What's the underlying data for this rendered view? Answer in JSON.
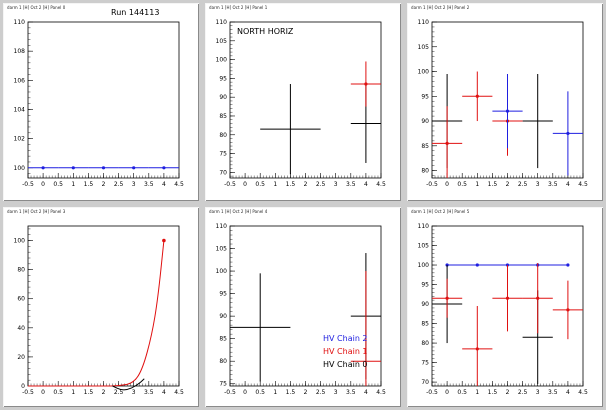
{
  "pads": [
    {
      "title": "darm 1 [H] Oct 2 [H] Panel 0"
    },
    {
      "title": "darm 1 [H] Oct 2 [H] Panel 1"
    },
    {
      "title": "darm 1 [H] Oct 2 [H] Panel 2"
    },
    {
      "title": "darm 1 [H] Oct 2 [H] Panel 3"
    },
    {
      "title": "darm 1 [H] Oct 2 [H] Panel 4"
    },
    {
      "title": "darm 1 [H] Oct 2 [H] Panel 5"
    }
  ],
  "colors": {
    "chain2": "#1f1fe0",
    "chain1": "#e01010",
    "chain0": "#000000"
  },
  "legend": {
    "chain2": "HV Chain 2",
    "chain1": "HV Chain 1",
    "chain0": "HV Chain 0"
  },
  "chart_data": [
    {
      "type": "scatter",
      "annotation": "Run 144113",
      "xlim": [
        -0.5,
        4.5
      ],
      "ylim": [
        99.3,
        110
      ],
      "xticks": [
        -0.5,
        0,
        0.5,
        1,
        1.5,
        2,
        2.5,
        3,
        3.5,
        4,
        4.5
      ],
      "yticks": [
        100,
        102,
        104,
        106,
        108,
        110
      ],
      "series": [
        {
          "color": "#1f1fe0",
          "points": [
            {
              "x": 0,
              "y": 100,
              "xerr": 0.5,
              "yerr": 0
            },
            {
              "x": 1,
              "y": 100,
              "xerr": 0.5,
              "yerr": 0
            },
            {
              "x": 2,
              "y": 100,
              "xerr": 0.5,
              "yerr": 0
            },
            {
              "x": 3,
              "y": 100,
              "xerr": 0.5,
              "yerr": 0
            },
            {
              "x": 4,
              "y": 100,
              "xerr": 0.5,
              "yerr": 0
            }
          ]
        }
      ]
    },
    {
      "type": "scatter",
      "annotation": "NORTH HORIZ",
      "xlim": [
        -0.5,
        4.5
      ],
      "ylim": [
        68.5,
        110
      ],
      "xticks": [
        -0.5,
        0,
        0.5,
        1,
        1.5,
        2,
        2.5,
        3,
        3.5,
        4,
        4.5
      ],
      "yticks": [
        70,
        75,
        80,
        85,
        90,
        95,
        100,
        105,
        110
      ],
      "series": [
        {
          "color": "#000000",
          "points": [
            {
              "x": 1.5,
              "y": 81.5,
              "xerr": 1.0,
              "yerr": 12
            },
            {
              "x": 4,
              "y": 83,
              "xerr": 0.5,
              "yerr": 10.5
            }
          ]
        },
        {
          "color": "#e01010",
          "points": [
            {
              "x": 4,
              "y": 93.5,
              "xerr": 0.5,
              "yerr": 6,
              "marker": true
            }
          ]
        }
      ]
    },
    {
      "type": "scatter",
      "xlim": [
        -0.5,
        4.5
      ],
      "ylim": [
        78.5,
        110
      ],
      "xticks": [
        -0.5,
        0,
        0.5,
        1,
        1.5,
        2,
        2.5,
        3,
        3.5,
        4,
        4.5
      ],
      "yticks": [
        80,
        85,
        90,
        95,
        100,
        105,
        110
      ],
      "series": [
        {
          "color": "#000000",
          "points": [
            {
              "x": 0,
              "y": 90,
              "xerr": 0.5,
              "yerr": 9.5
            },
            {
              "x": 3,
              "y": 90,
              "xerr": 0.5,
              "yerr": 9.5
            }
          ]
        },
        {
          "color": "#e01010",
          "points": [
            {
              "x": 0,
              "y": 85.5,
              "xerr": 0.5,
              "yerr": 7.5,
              "marker": true
            },
            {
              "x": 1,
              "y": 95,
              "xerr": 0.5,
              "yerr": 5,
              "marker": true
            },
            {
              "x": 2,
              "y": 90,
              "xerr": 0.5,
              "yerr": 7,
              "marker": true
            }
          ]
        },
        {
          "color": "#1f1fe0",
          "points": [
            {
              "x": 2,
              "y": 92,
              "xerr": 0.5,
              "yerr": 7.5,
              "marker": true
            },
            {
              "x": 4,
              "y": 87.5,
              "xerr": 0.5,
              "yerr": 8.5,
              "marker": true
            }
          ]
        }
      ]
    },
    {
      "type": "line",
      "xlim": [
        -0.5,
        4.5
      ],
      "ylim": [
        0,
        110
      ],
      "xticks": [
        -0.5,
        0,
        0.5,
        1,
        1.5,
        2,
        2.5,
        3,
        3.5,
        4,
        4.5
      ],
      "yticks": [
        0,
        20,
        40,
        60,
        80,
        100
      ],
      "series": [
        {
          "color": "#e01010",
          "smooth": true,
          "points": [
            {
              "x": -0.5,
              "y": 0
            },
            {
              "x": 0,
              "y": 0
            },
            {
              "x": 1,
              "y": 0
            },
            {
              "x": 2,
              "y": 0
            },
            {
              "x": 2.5,
              "y": 0
            },
            {
              "x": 3,
              "y": 2
            },
            {
              "x": 3.3,
              "y": 12
            },
            {
              "x": 3.6,
              "y": 35
            },
            {
              "x": 3.8,
              "y": 60
            },
            {
              "x": 4,
              "y": 100
            }
          ],
          "marker_points": [
            {
              "x": 4,
              "y": 100
            }
          ]
        },
        {
          "color": "#000000",
          "smooth": true,
          "points": [
            {
              "x": 2.3,
              "y": 0
            },
            {
              "x": 2.6,
              "y": -3
            },
            {
              "x": 2.9,
              "y": -2
            },
            {
              "x": 3.2,
              "y": 2
            },
            {
              "x": 3.35,
              "y": 5
            }
          ]
        }
      ]
    },
    {
      "type": "scatter",
      "xlim": [
        -0.5,
        4.5
      ],
      "ylim": [
        74.5,
        110
      ],
      "xticks": [
        -0.5,
        0,
        0.5,
        1,
        1.5,
        2,
        2.5,
        3,
        3.5,
        4,
        4.5
      ],
      "yticks": [
        75,
        80,
        85,
        90,
        95,
        100,
        105,
        110
      ],
      "series": [
        {
          "color": "#000000",
          "points": [
            {
              "x": 0.5,
              "y": 87.5,
              "xerr": 1.0,
              "yerr": 12
            },
            {
              "x": 4,
              "y": 90,
              "xerr": 0.5,
              "yerr": 14
            }
          ]
        },
        {
          "color": "#e01010",
          "points": [
            {
              "x": 4,
              "y": 80,
              "xerr": 0.5,
              "yerr": 20
            }
          ]
        }
      ],
      "legend": true
    },
    {
      "type": "scatter",
      "xlim": [
        -0.5,
        4.5
      ],
      "ylim": [
        69,
        110
      ],
      "xticks": [
        -0.5,
        0,
        0.5,
        1,
        1.5,
        2,
        2.5,
        3,
        3.5,
        4,
        4.5
      ],
      "yticks": [
        70,
        75,
        80,
        85,
        90,
        95,
        100,
        105,
        110
      ],
      "series": [
        {
          "color": "#1f1fe0",
          "line": true,
          "points": [
            {
              "x": 0,
              "y": 100,
              "xerr": 0,
              "yerr": 0,
              "marker": true
            },
            {
              "x": 1,
              "y": 100,
              "xerr": 0,
              "yerr": 0,
              "marker": true
            },
            {
              "x": 2,
              "y": 100,
              "xerr": 0,
              "yerr": 0,
              "marker": true
            },
            {
              "x": 3,
              "y": 100,
              "xerr": 0,
              "yerr": 0,
              "marker": true
            },
            {
              "x": 4,
              "y": 100,
              "xerr": 0,
              "yerr": 0,
              "marker": true
            }
          ]
        },
        {
          "color": "#000000",
          "points": [
            {
              "x": 0,
              "y": 90,
              "xerr": 0.5,
              "yerr": 10
            },
            {
              "x": 3,
              "y": 81.5,
              "xerr": 0.5,
              "yerr": 12
            }
          ]
        },
        {
          "color": "#e01010",
          "points": [
            {
              "x": 0,
              "y": 91.5,
              "xerr": 0.5,
              "yerr": 5,
              "marker": true
            },
            {
              "x": 1,
              "y": 78.5,
              "xerr": 0.5,
              "yerr": 11,
              "marker": true
            },
            {
              "x": 2,
              "y": 91.5,
              "xerr": 0.5,
              "yerr": 8.5,
              "marker": true
            },
            {
              "x": 3,
              "y": 91.5,
              "xerr": 0.5,
              "yerr": 9,
              "marker": true
            },
            {
              "x": 4,
              "y": 88.5,
              "xerr": 0.5,
              "yerr": 7.5,
              "marker": true
            }
          ]
        }
      ]
    }
  ]
}
